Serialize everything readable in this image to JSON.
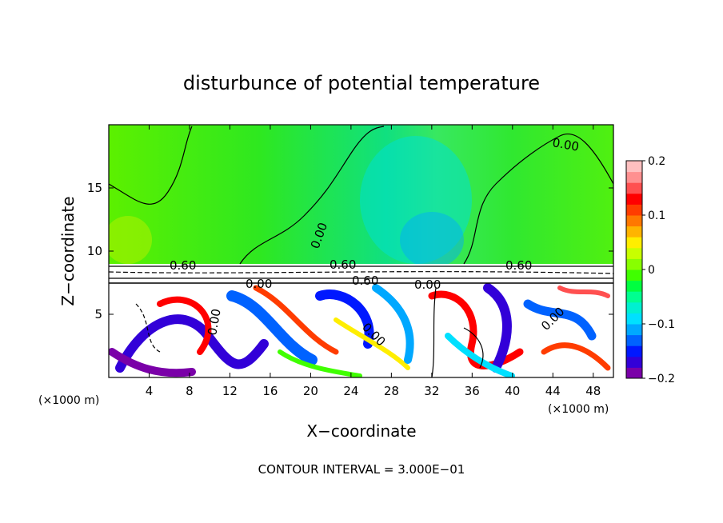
{
  "chart_data": {
    "type": "heatmap",
    "title": "disturbunce of potential temperature",
    "xlabel": "X−coordinate",
    "ylabel": "Z−coordinate",
    "x_unit_left": "(×1000 m)",
    "x_unit_right": "(×1000 m)",
    "xlim": [
      0,
      50
    ],
    "ylim": [
      0,
      20
    ],
    "x_ticks": [
      4,
      8,
      12,
      16,
      20,
      24,
      28,
      32,
      36,
      40,
      44,
      48
    ],
    "y_ticks": [
      5,
      10,
      15
    ],
    "colorbar": {
      "range": [
        -0.2,
        0.2
      ],
      "tick_values": [
        0.2,
        0.1,
        0,
        -0.1,
        -0.2
      ],
      "tick_labels": [
        "0.2",
        "0.1",
        "0",
        "−0.1",
        "−0.2"
      ],
      "colors": [
        "#7a00a8",
        "#3200d8",
        "#0018ff",
        "#0062ff",
        "#00a8ff",
        "#00e0ff",
        "#00f0d0",
        "#00ff90",
        "#00ff40",
        "#40ff00",
        "#88ff00",
        "#c8ff00",
        "#ffee00",
        "#ffb400",
        "#ff7800",
        "#ff3c00",
        "#ff0000",
        "#ff5050",
        "#ff9090",
        "#ffc0c0"
      ]
    },
    "contour_labels": [
      "0.00",
      "0.00",
      "0.60",
      "0.60",
      "0.60",
      "0.60",
      "0.00",
      "0.00",
      "0.00",
      "0.00",
      "0.00"
    ],
    "footer": "CONTOUR INTERVAL = 3.000E−01",
    "grid": false,
    "legend": "colorbar right"
  }
}
